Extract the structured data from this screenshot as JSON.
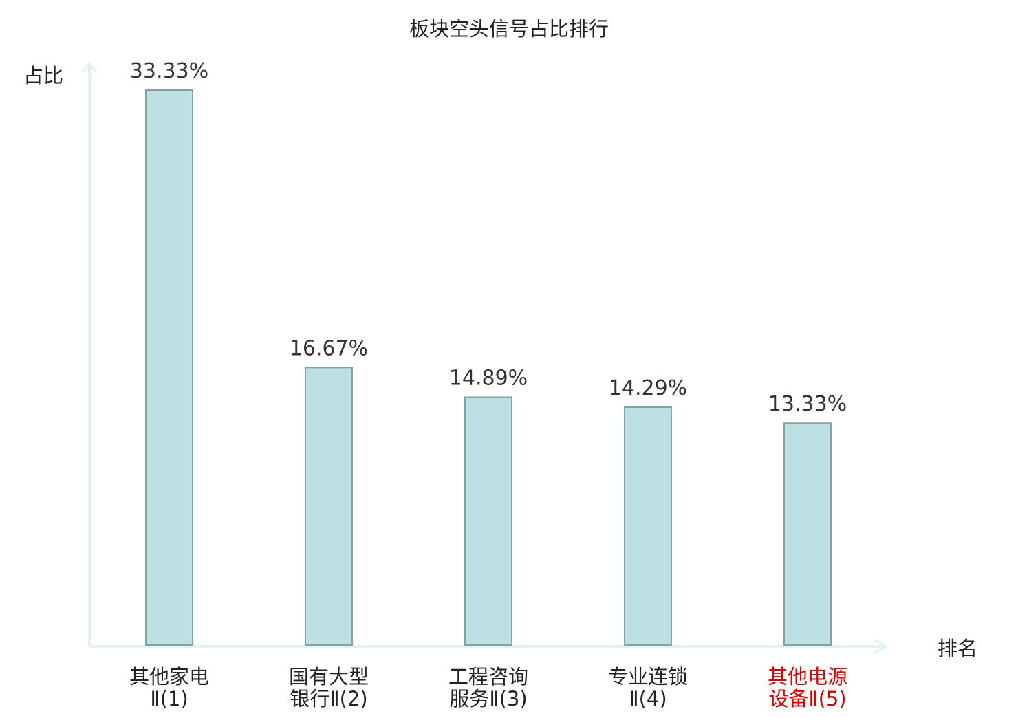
{
  "chart_data": {
    "type": "bar",
    "title": "板块空头信号占比排行",
    "ylabel": "占比",
    "xlabel": "排名",
    "categories": [
      [
        "其他家电",
        "Ⅱ(1)"
      ],
      [
        "国有大型",
        "银行Ⅱ(2)"
      ],
      [
        "工程咨询",
        "服务Ⅱ(3)"
      ],
      [
        "专业连锁",
        "Ⅱ(4)"
      ],
      [
        "其他电源",
        "设备Ⅱ(5)"
      ]
    ],
    "values": [
      33.33,
      16.67,
      14.89,
      14.29,
      13.33
    ],
    "value_labels": [
      "33.33%",
      "16.67%",
      "14.89%",
      "14.29%",
      "13.33%"
    ],
    "highlight_index": 4,
    "ylim": [
      0,
      33.33
    ],
    "grid": false,
    "legend": "none",
    "colors": {
      "bar_fill": "#bde0e2",
      "bar_stroke": "#86a1a3",
      "axis": "#e0f3f1",
      "text": "#222222",
      "value_label": "#333333",
      "highlight": "#e00000"
    }
  }
}
